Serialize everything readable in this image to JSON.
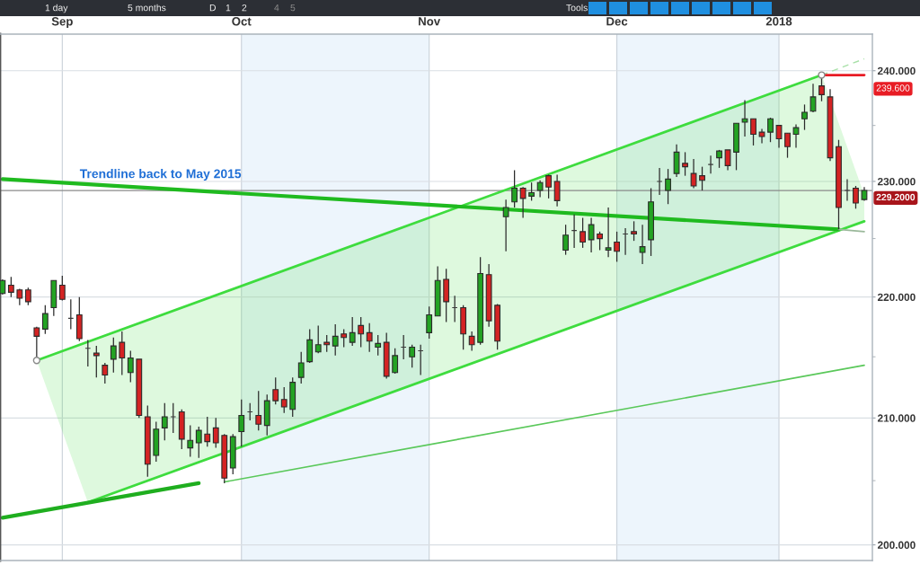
{
  "chart_data": {
    "type": "candlestick",
    "categories": [
      null,
      null,
      null,
      null,
      null,
      null,
      null,
      "Sep",
      null,
      null,
      null,
      null,
      null,
      null,
      null,
      null,
      null,
      null,
      null,
      null,
      null,
      null,
      null,
      null,
      null,
      null,
      null,
      null,
      "Oct",
      null,
      null,
      null,
      null,
      null,
      null,
      null,
      null,
      null,
      null,
      null,
      null,
      null,
      null,
      null,
      null,
      null,
      null,
      null,
      null,
      null,
      "Nov",
      null,
      null,
      null,
      null,
      null,
      null,
      null,
      null,
      null,
      null,
      null,
      null,
      null,
      null,
      null,
      null,
      null,
      null,
      null,
      null,
      null,
      "Dec",
      null,
      null,
      null,
      null,
      null,
      null,
      null,
      null,
      null,
      null,
      null,
      null,
      null,
      null,
      null,
      null,
      null,
      null,
      "2018",
      null,
      null,
      null,
      null,
      null,
      null,
      null,
      null,
      null,
      null
    ],
    "ohlc": [
      [
        220.3,
        221.5,
        220.2,
        221.4
      ],
      [
        221.0,
        221.7,
        220.0,
        220.4
      ],
      [
        220.6,
        220.7,
        219.3,
        219.9
      ],
      [
        220.6,
        220.8,
        219.3,
        219.6
      ],
      [
        217.4,
        217.5,
        214.7,
        216.7
      ],
      [
        217.3,
        219.3,
        216.9,
        218.6
      ],
      [
        219.1,
        221.4,
        218.4,
        221.4
      ],
      [
        221.0,
        221.8,
        219.7,
        219.8
      ],
      [
        218.2,
        219.8,
        217.3,
        218.2
      ],
      [
        218.5,
        220.0,
        216.3,
        216.5
      ],
      [
        215.7,
        216.4,
        214.2,
        215.7
      ],
      [
        215.3,
        215.9,
        213.3,
        215.1
      ],
      [
        214.3,
        214.5,
        212.8,
        213.5
      ],
      [
        214.8,
        216.6,
        213.7,
        215.9
      ],
      [
        216.2,
        217.1,
        213.5,
        214.9
      ],
      [
        213.7,
        215.5,
        212.9,
        214.9
      ],
      [
        214.8,
        214.8,
        210.0,
        210.2
      ],
      [
        210.1,
        211.0,
        205.3,
        206.3
      ],
      [
        207.0,
        209.7,
        206.5,
        209.1
      ],
      [
        209.2,
        211.2,
        208.2,
        210.1
      ],
      [
        210.1,
        211.2,
        208.8,
        210.1
      ],
      [
        210.5,
        210.7,
        207.5,
        208.3
      ],
      [
        207.6,
        209.4,
        206.9,
        208.2
      ],
      [
        208.0,
        209.3,
        206.8,
        209.0
      ],
      [
        208.7,
        210.1,
        207.7,
        208.1
      ],
      [
        209.2,
        210.0,
        207.6,
        208.0
      ],
      [
        208.6,
        208.7,
        204.8,
        205.2
      ],
      [
        206.0,
        208.7,
        205.5,
        208.5
      ],
      [
        208.9,
        211.5,
        207.7,
        210.2
      ],
      [
        210.5,
        211.2,
        209.8,
        210.5
      ],
      [
        210.2,
        212.2,
        209.0,
        209.5
      ],
      [
        209.4,
        211.9,
        208.6,
        211.4
      ],
      [
        212.3,
        213.3,
        211.1,
        211.4
      ],
      [
        211.5,
        212.5,
        210.4,
        210.9
      ],
      [
        210.7,
        213.3,
        210.1,
        212.9
      ],
      [
        213.3,
        215.4,
        212.8,
        214.5
      ],
      [
        214.6,
        217.3,
        214.5,
        216.4
      ],
      [
        215.4,
        217.6,
        215.3,
        216.0
      ],
      [
        216.2,
        216.8,
        215.4,
        216.0
      ],
      [
        215.9,
        217.7,
        215.1,
        216.7
      ],
      [
        216.9,
        217.3,
        215.8,
        216.6
      ],
      [
        216.2,
        218.3,
        215.9,
        217.0
      ],
      [
        217.6,
        218.3,
        215.8,
        216.9
      ],
      [
        217.0,
        217.8,
        215.4,
        216.3
      ],
      [
        215.8,
        216.8,
        215.1,
        216.1
      ],
      [
        216.2,
        217.0,
        213.2,
        213.4
      ],
      [
        213.7,
        215.7,
        213.6,
        215.1
      ],
      [
        215.8,
        216.8,
        214.8,
        215.8
      ],
      [
        215.0,
        216.0,
        214.1,
        215.8
      ],
      [
        215.5,
        216.0,
        213.5,
        215.5
      ],
      [
        217.0,
        219.2,
        216.5,
        218.5
      ],
      [
        218.4,
        222.6,
        218.4,
        221.4
      ],
      [
        221.5,
        222.4,
        217.9,
        219.6
      ],
      [
        219.1,
        220.1,
        217.9,
        219.1
      ],
      [
        219.1,
        219.3,
        215.6,
        216.9
      ],
      [
        216.7,
        217.1,
        215.5,
        216.0
      ],
      [
        216.2,
        223.4,
        216.0,
        222.0
      ],
      [
        221.9,
        222.8,
        217.5,
        218.0
      ],
      [
        219.3,
        219.4,
        215.6,
        216.3
      ],
      [
        226.9,
        228.4,
        223.9,
        227.7
      ],
      [
        228.2,
        231.0,
        227.7,
        229.4
      ],
      [
        229.4,
        229.5,
        226.8,
        228.5
      ],
      [
        228.7,
        229.9,
        228.3,
        229.0
      ],
      [
        229.2,
        230.1,
        228.6,
        229.9
      ],
      [
        230.5,
        230.6,
        228.5,
        229.5
      ],
      [
        230.0,
        230.6,
        227.8,
        228.3
      ],
      [
        224.0,
        226.2,
        223.6,
        225.3
      ],
      [
        225.7,
        227.1,
        224.2,
        225.7
      ],
      [
        225.6,
        226.8,
        224.2,
        224.7
      ],
      [
        224.9,
        226.8,
        223.8,
        226.2
      ],
      [
        225.4,
        225.6,
        224.0,
        225.0
      ],
      [
        224.0,
        227.7,
        223.4,
        224.2
      ],
      [
        224.7,
        225.6,
        223.0,
        223.9
      ],
      [
        225.4,
        225.9,
        223.6,
        225.4
      ],
      [
        225.6,
        226.5,
        224.8,
        225.4
      ],
      [
        223.8,
        226.2,
        222.8,
        224.3
      ],
      [
        224.9,
        229.4,
        223.5,
        228.2
      ],
      [
        230.0,
        231.2,
        228.8,
        230.0
      ],
      [
        229.2,
        231.1,
        228.0,
        230.2
      ],
      [
        230.7,
        233.3,
        230.4,
        232.6
      ],
      [
        231.6,
        232.6,
        230.5,
        231.3
      ],
      [
        230.7,
        232.0,
        229.4,
        229.6
      ],
      [
        230.5,
        231.3,
        229.2,
        230.1
      ],
      [
        231.5,
        232.3,
        230.7,
        231.5
      ],
      [
        232.1,
        232.8,
        231.2,
        232.7
      ],
      [
        232.8,
        232.8,
        231.0,
        231.4
      ],
      [
        232.6,
        235.2,
        231.0,
        235.2
      ],
      [
        235.3,
        237.3,
        234.0,
        235.6
      ],
      [
        235.6,
        235.6,
        233.2,
        234.2
      ],
      [
        234.4,
        234.7,
        233.4,
        234.0
      ],
      [
        234.4,
        235.7,
        233.5,
        235.6
      ],
      [
        235.0,
        235.0,
        233.0,
        233.8
      ],
      [
        234.3,
        234.3,
        232.1,
        233.1
      ],
      [
        234.2,
        235.1,
        233.0,
        234.8
      ],
      [
        235.6,
        236.9,
        234.6,
        236.2
      ],
      [
        236.3,
        238.8,
        236.2,
        237.6
      ],
      [
        238.6,
        239.6,
        237.2,
        237.8
      ],
      [
        237.6,
        238.3,
        231.8,
        232.1
      ],
      [
        233.1,
        233.7,
        225.8,
        227.7
      ],
      [
        229.2,
        230.2,
        228.3,
        229.2
      ],
      [
        229.4,
        229.6,
        227.6,
        228.1
      ],
      [
        228.4,
        229.5,
        228.3,
        229.2
      ]
    ],
    "colors": [
      "#23a323",
      "#d42323",
      "#d42323",
      "#d42323",
      "#d42323",
      "#23a323",
      "#23a323",
      "#d42323",
      "#3a3a3a",
      "#d42323",
      "#3a3a3a",
      "#d42323",
      "#d42323",
      "#23a323",
      "#d42323",
      "#23a323",
      "#d42323",
      "#d42323",
      "#23a323",
      "#23a323",
      "#3a3a3a",
      "#d42323",
      "#23a323",
      "#23a323",
      "#d42323",
      "#d42323",
      "#d42323",
      "#23a323",
      "#23a323",
      "#3a3a3a",
      "#d42323",
      "#23a323",
      "#d42323",
      "#d42323",
      "#23a323",
      "#23a323",
      "#23a323",
      "#23a323",
      "#d42323",
      "#23a323",
      "#d42323",
      "#23a323",
      "#d42323",
      "#d42323",
      "#23a323",
      "#d42323",
      "#23a323",
      "#3a3a3a",
      "#23a323",
      "#3a3a3a",
      "#23a323",
      "#23a323",
      "#d42323",
      "#3a3a3a",
      "#d42323",
      "#d42323",
      "#23a323",
      "#d42323",
      "#d42323",
      "#23a323",
      "#23a323",
      "#d42323",
      "#23a323",
      "#23a323",
      "#d42323",
      "#d42323",
      "#23a323",
      "#3a3a3a",
      "#d42323",
      "#23a323",
      "#d42323",
      "#23a323",
      "#d42323",
      "#3a3a3a",
      "#d42323",
      "#23a323",
      "#23a323",
      "#3a3a3a",
      "#23a323",
      "#23a323",
      "#d42323",
      "#d42323",
      "#d42323",
      "#3a3a3a",
      "#23a323",
      "#d42323",
      "#23a323",
      "#23a323",
      "#d42323",
      "#d42323",
      "#23a323",
      "#d42323",
      "#d42323",
      "#23a323",
      "#23a323",
      "#23a323",
      "#d42323",
      "#d42323",
      "#d42323",
      "#3a3a3a",
      "#d42323",
      "#23a323"
    ],
    "series": [
      {
        "type": "line",
        "color": "#3edc3e",
        "marker": "circle",
        "values": [
          null,
          null,
          null,
          null,
          214.7,
          null,
          null,
          null,
          null,
          null,
          null,
          null,
          null,
          null,
          null,
          null,
          null,
          null,
          null,
          null,
          null,
          null,
          null,
          null,
          null,
          null,
          null,
          null,
          null,
          null,
          null,
          null,
          null,
          null,
          null,
          null,
          null,
          null,
          null,
          null,
          null,
          null,
          null,
          null,
          null,
          null,
          null,
          null,
          null,
          null,
          null,
          null,
          null,
          null,
          null,
          null,
          null,
          null,
          null,
          null,
          null,
          null,
          null,
          null,
          null,
          null,
          null,
          null,
          null,
          null,
          null,
          null,
          null,
          null,
          null,
          null,
          null,
          null,
          null,
          null,
          null,
          null,
          null,
          null,
          null,
          null,
          null,
          null,
          null,
          null,
          null,
          null,
          null,
          null,
          null,
          null,
          239.6,
          null,
          null,
          null,
          null,
          null
        ],
        "upper": [
          null,
          null,
          null,
          null,
          214.7,
          null,
          null,
          null,
          null,
          null,
          216.3,
          null,
          null,
          null,
          null,
          null,
          null,
          null,
          null,
          null,
          null,
          null,
          null,
          null,
          null,
          null,
          null,
          null,
          null,
          null,
          null,
          null,
          null,
          null,
          null,
          null,
          null,
          null,
          null,
          null,
          null,
          null,
          null,
          null,
          null,
          null,
          null,
          null,
          null,
          null,
          null,
          null,
          null,
          null,
          null,
          null,
          null,
          null,
          null,
          null,
          null,
          null,
          null,
          null,
          null,
          null,
          null,
          null,
          null,
          null,
          null,
          null,
          null,
          null,
          null,
          null,
          null,
          null,
          null,
          null,
          null,
          null,
          null,
          null,
          null,
          null,
          null,
          null,
          null,
          null,
          null,
          null,
          null,
          null,
          null,
          null,
          239.6,
          null,
          null,
          null,
          null,
          228.8
        ],
        "lower": [
          null,
          null,
          null,
          null,
          214.7,
          null,
          null,
          null,
          null,
          null,
          203.3,
          null,
          null,
          null,
          null,
          null,
          null,
          null,
          null,
          null,
          null,
          null,
          null,
          null,
          null,
          null,
          null,
          null,
          null,
          null,
          null,
          null,
          null,
          null,
          null,
          null,
          null,
          null,
          null,
          null,
          null,
          null,
          null,
          null,
          null,
          null,
          null,
          null,
          null,
          null,
          null,
          null,
          null,
          null,
          null,
          null,
          null,
          null,
          null,
          null,
          null,
          null,
          null,
          null,
          null,
          null,
          null,
          null,
          null,
          null,
          null,
          null,
          null,
          null,
          null,
          null,
          null,
          null,
          null,
          null,
          null,
          null,
          null,
          null,
          null,
          null,
          null,
          null,
          null,
          null,
          null,
          null,
          null,
          null,
          null,
          null,
          225.2,
          null,
          null,
          null,
          null,
          226.5
        ]
      },
      {
        "type": "line",
        "color": "#a8e0a8",
        "line_style": "dashed",
        "values": [
          null,
          null,
          null,
          null,
          null,
          null,
          null,
          null,
          null,
          null,
          null,
          null,
          null,
          null,
          null,
          null,
          null,
          null,
          null,
          null,
          null,
          null,
          null,
          null,
          null,
          null,
          null,
          null,
          null,
          null,
          null,
          null,
          null,
          null,
          null,
          null,
          null,
          null,
          null,
          null,
          null,
          null,
          null,
          null,
          null,
          null,
          null,
          null,
          null,
          null,
          null,
          null,
          null,
          null,
          null,
          null,
          null,
          null,
          null,
          null,
          null,
          null,
          null,
          null,
          null,
          null,
          null,
          null,
          null,
          null,
          null,
          null,
          null,
          null,
          null,
          null,
          null,
          null,
          null,
          null,
          null,
          null,
          null,
          null,
          null,
          null,
          null,
          null,
          null,
          null,
          null,
          null,
          null,
          null,
          null,
          null,
          239.6,
          null,
          null,
          null,
          null,
          241.1
        ]
      },
      {
        "type": "line",
        "color": "#3edc3e",
        "values": [
          null,
          null,
          null,
          null,
          null,
          null,
          null,
          null,
          null,
          null,
          203.3,
          null,
          null,
          null,
          null,
          null,
          null,
          null,
          null,
          null,
          null,
          null,
          null,
          null,
          null,
          null,
          null,
          null,
          null,
          null,
          null,
          null,
          null,
          null,
          null,
          null,
          null,
          null,
          null,
          null,
          null,
          null,
          null,
          null,
          null,
          null,
          null,
          null,
          null,
          null,
          null,
          null,
          null,
          null,
          null,
          null,
          null,
          null,
          null,
          null,
          null,
          null,
          null,
          null,
          null,
          null,
          null,
          null,
          null,
          null,
          null,
          null,
          null,
          null,
          null,
          null,
          null,
          null,
          null,
          null,
          null,
          null,
          null,
          null,
          null,
          null,
          null,
          null,
          null,
          null,
          null,
          null,
          null,
          null,
          null,
          null,
          null,
          null,
          null,
          null,
          null,
          226.5
        ]
      },
      {
        "type": "line",
        "color": "#1fba1f",
        "values": [
          230.2,
          null,
          null,
          null,
          null,
          null,
          null,
          null,
          null,
          null,
          null,
          null,
          null,
          null,
          null,
          null,
          null,
          null,
          null,
          null,
          null,
          null,
          null,
          null,
          null,
          null,
          null,
          null,
          null,
          null,
          null,
          null,
          null,
          null,
          null,
          null,
          null,
          null,
          null,
          null,
          null,
          null,
          null,
          null,
          null,
          null,
          null,
          null,
          null,
          null,
          null,
          null,
          null,
          null,
          null,
          null,
          null,
          null,
          null,
          null,
          null,
          null,
          null,
          null,
          null,
          null,
          null,
          null,
          null,
          null,
          null,
          null,
          null,
          null,
          null,
          null,
          null,
          null,
          null,
          null,
          null,
          null,
          null,
          null,
          null,
          null,
          null,
          null,
          null,
          null,
          null,
          null,
          null,
          null,
          null,
          null,
          null,
          null,
          225.8,
          null,
          null,
          null
        ]
      },
      {
        "type": "line",
        "color": "#9ab89a",
        "values": [
          null,
          null,
          null,
          null,
          null,
          null,
          null,
          null,
          null,
          null,
          null,
          null,
          null,
          null,
          null,
          null,
          null,
          null,
          null,
          null,
          null,
          null,
          null,
          null,
          null,
          null,
          null,
          null,
          null,
          null,
          null,
          null,
          null,
          null,
          null,
          null,
          null,
          null,
          null,
          null,
          null,
          null,
          null,
          null,
          null,
          null,
          null,
          null,
          null,
          null,
          null,
          null,
          null,
          null,
          null,
          null,
          null,
          null,
          null,
          null,
          null,
          null,
          null,
          null,
          null,
          null,
          null,
          null,
          null,
          null,
          null,
          null,
          null,
          null,
          null,
          null,
          null,
          null,
          null,
          null,
          null,
          null,
          null,
          null,
          null,
          null,
          null,
          null,
          null,
          null,
          null,
          null,
          null,
          null,
          null,
          null,
          null,
          null,
          225.8,
          null,
          null,
          225.6
        ]
      },
      {
        "type": "line",
        "color": "#5ac85a",
        "values": [
          null,
          null,
          null,
          null,
          null,
          null,
          null,
          null,
          null,
          null,
          null,
          null,
          null,
          null,
          null,
          null,
          null,
          null,
          null,
          null,
          null,
          null,
          null,
          null,
          null,
          null,
          204.9,
          null,
          null,
          null,
          null,
          null,
          null,
          null,
          null,
          null,
          null,
          null,
          null,
          null,
          null,
          null,
          null,
          null,
          null,
          null,
          null,
          null,
          null,
          null,
          null,
          null,
          null,
          null,
          null,
          null,
          null,
          null,
          null,
          null,
          null,
          null,
          null,
          null,
          null,
          null,
          null,
          null,
          null,
          null,
          null,
          null,
          null,
          null,
          null,
          null,
          null,
          null,
          null,
          null,
          null,
          null,
          null,
          null,
          null,
          null,
          null,
          null,
          null,
          null,
          null,
          null,
          null,
          null,
          null,
          null,
          null,
          null,
          null,
          null,
          null,
          214.3
        ]
      },
      {
        "type": "line",
        "color": "#1fae1f",
        "values": [
          202.1,
          null,
          null,
          null,
          null,
          null,
          null,
          null,
          null,
          null,
          null,
          null,
          null,
          null,
          null,
          null,
          null,
          null,
          null,
          null,
          null,
          null,
          null,
          204.8,
          null,
          null,
          null,
          null,
          null,
          null,
          null,
          null,
          null,
          null,
          null,
          null,
          null,
          null,
          null,
          null,
          null,
          null,
          null,
          null,
          null,
          null,
          null,
          null,
          null,
          null,
          null,
          null,
          null,
          null,
          null,
          null,
          null,
          null,
          null,
          null,
          null,
          null,
          null,
          null,
          null,
          null,
          null,
          null,
          null,
          null,
          null,
          null,
          null,
          null,
          null,
          null,
          null,
          null,
          null,
          null,
          null,
          null,
          null,
          null,
          null,
          null,
          null,
          null,
          null,
          null,
          null,
          null,
          null,
          null,
          null,
          null,
          null,
          null,
          null,
          null,
          null,
          null
        ]
      },
      {
        "type": "line",
        "color": "#e81c24",
        "values": [
          null,
          null,
          null,
          null,
          null,
          null,
          null,
          null,
          null,
          null,
          null,
          null,
          null,
          null,
          null,
          null,
          null,
          null,
          null,
          null,
          null,
          null,
          null,
          null,
          null,
          null,
          null,
          null,
          null,
          null,
          null,
          null,
          null,
          null,
          null,
          null,
          null,
          null,
          null,
          null,
          null,
          null,
          null,
          null,
          null,
          null,
          null,
          null,
          null,
          null,
          null,
          null,
          null,
          null,
          null,
          null,
          null,
          null,
          null,
          null,
          null,
          null,
          null,
          null,
          null,
          null,
          null,
          null,
          null,
          null,
          null,
          null,
          null,
          null,
          null,
          null,
          null,
          null,
          null,
          null,
          null,
          null,
          null,
          null,
          null,
          null,
          null,
          null,
          null,
          null,
          null,
          null,
          null,
          null,
          null,
          null,
          239.6,
          null,
          null,
          null,
          null,
          239.6
        ],
        "value_labels": [
          null,
          null,
          null,
          null,
          null,
          null,
          null,
          null,
          null,
          null,
          null,
          null,
          null,
          null,
          null,
          null,
          null,
          null,
          null,
          null,
          null,
          null,
          null,
          null,
          null,
          null,
          null,
          null,
          null,
          null,
          null,
          null,
          null,
          null,
          null,
          null,
          null,
          null,
          null,
          null,
          null,
          null,
          null,
          null,
          null,
          null,
          null,
          null,
          null,
          null,
          null,
          null,
          null,
          null,
          null,
          null,
          null,
          null,
          null,
          null,
          null,
          null,
          null,
          null,
          null,
          null,
          null,
          null,
          null,
          null,
          null,
          null,
          null,
          null,
          null,
          null,
          null,
          null,
          null,
          null,
          null,
          null,
          null,
          null,
          null,
          null,
          null,
          null,
          null,
          null,
          null,
          null,
          null,
          null,
          null,
          null,
          null,
          null,
          null,
          null,
          null,
          "239.600"
        ]
      }
    ],
    "ref_lines": [
      {
        "axis": "y",
        "value": 229.2,
        "label": "229.2000",
        "color": "#8a8a8a"
      }
    ],
    "bands": [
      {
        "axis": "x",
        "from": "Oct",
        "to": "Nov",
        "color": "#edf5fc"
      },
      {
        "axis": "x",
        "from": "Dec",
        "to": "2018",
        "color": "#edf5fc"
      }
    ],
    "ylim": [
      198.8,
      243.4
    ],
    "yticks": [
      {
        "value": 200,
        "label": "200.000"
      },
      {
        "value": 205,
        "label": null
      },
      {
        "value": 210,
        "label": "210.000"
      },
      {
        "value": 215,
        "label": null
      },
      {
        "value": 220,
        "label": "220.000"
      },
      {
        "value": 225,
        "label": null
      },
      {
        "value": 230,
        "label": "230.000"
      },
      {
        "value": 235,
        "label": null
      },
      {
        "value": 240,
        "label": "240.000"
      }
    ],
    "log": true,
    "grid": true,
    "annotations": [
      {
        "text": "Trendline back to May 2015",
        "y": 229.3
      },
      "1 day",
      "5 months",
      "D",
      "1",
      "2",
      "4",
      "5",
      "Tools"
    ]
  }
}
